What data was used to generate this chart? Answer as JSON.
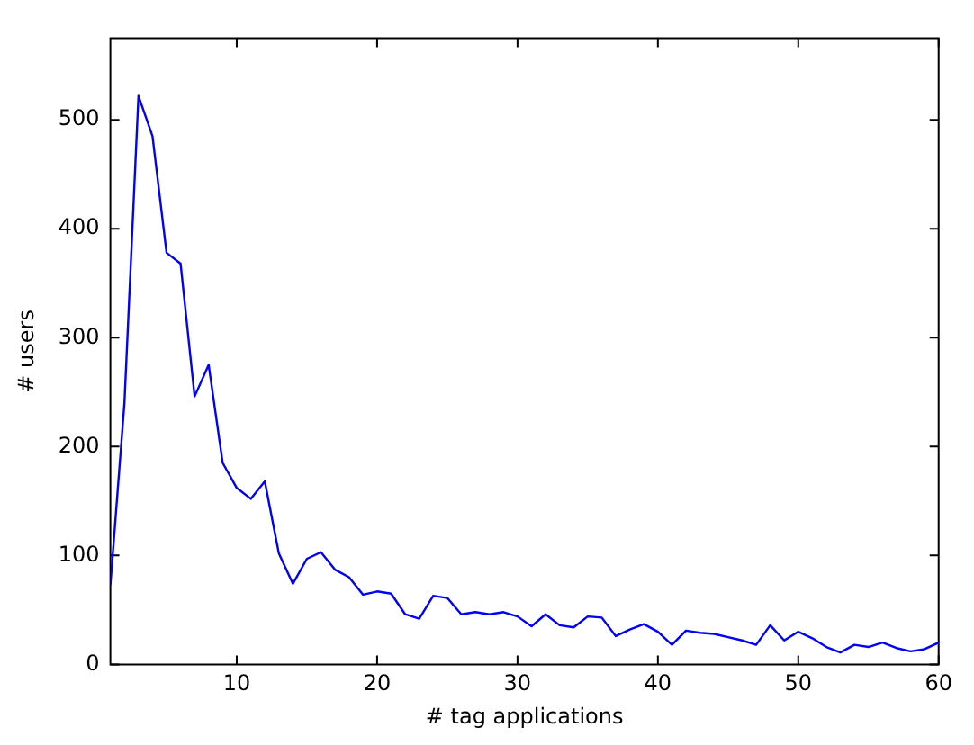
{
  "chart_data": {
    "type": "line",
    "xlabel": "# tag applications",
    "ylabel": "# users",
    "x": [
      1,
      2,
      3,
      4,
      5,
      6,
      7,
      8,
      9,
      10,
      11,
      12,
      13,
      14,
      15,
      16,
      17,
      18,
      19,
      20,
      21,
      22,
      23,
      24,
      25,
      26,
      27,
      28,
      29,
      30,
      31,
      32,
      33,
      34,
      35,
      36,
      37,
      38,
      39,
      40,
      41,
      42,
      43,
      44,
      45,
      46,
      47,
      48,
      49,
      50,
      51,
      52,
      53,
      54,
      55,
      56,
      57,
      58,
      59,
      60
    ],
    "series": [
      {
        "color": "#0000ff",
        "values": [
          73,
          240,
          522,
          485,
          378,
          368,
          246,
          275,
          185,
          162,
          152,
          168,
          102,
          74,
          97,
          103,
          87,
          80,
          64,
          67,
          65,
          46,
          42,
          63,
          61,
          46,
          48,
          46,
          48,
          44,
          35,
          46,
          36,
          34,
          44,
          43,
          26,
          32,
          37,
          30,
          18,
          31,
          29,
          28,
          25,
          22,
          18,
          36,
          22,
          30,
          24,
          16,
          11,
          18,
          16,
          20,
          15,
          12,
          14,
          20
        ]
      }
    ],
    "xlim": [
      1,
      60
    ],
    "xticks": [
      10,
      20,
      30,
      40,
      50,
      60
    ],
    "ylim": [
      0,
      575
    ],
    "yticks": [
      0,
      100,
      200,
      300,
      400,
      500
    ],
    "grid": false,
    "legend": false,
    "marker": "none",
    "line_style": "solid"
  }
}
